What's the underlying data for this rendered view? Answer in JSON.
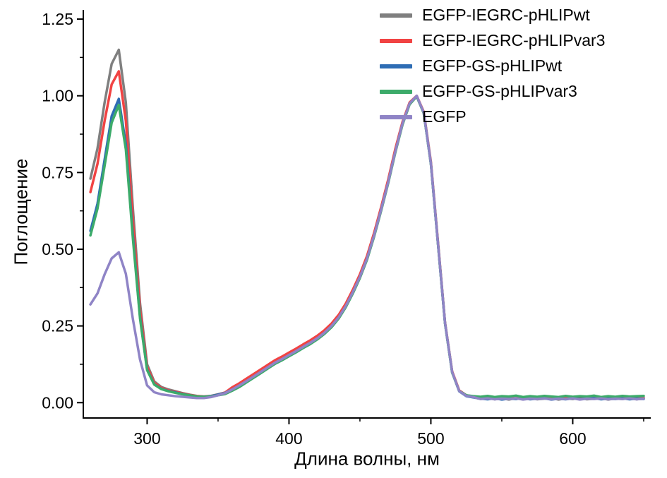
{
  "figure": {
    "background": "#ffffff",
    "axis_color": "#000000"
  },
  "chart_data": {
    "type": "line",
    "title": "",
    "xlabel": "Длина волны, нм",
    "ylabel": "Поглощение",
    "xlim": [
      255,
      655
    ],
    "ylim": [
      -0.05,
      1.28
    ],
    "x_ticks": [
      300,
      400,
      500,
      600
    ],
    "x_tick_labels": [
      "300",
      "400",
      "500",
      "600"
    ],
    "x_minor_ticks": [
      350,
      450,
      550,
      650
    ],
    "y_ticks": [
      0.0,
      0.25,
      0.5,
      0.75,
      1.0,
      1.25
    ],
    "y_tick_labels": [
      "0.00",
      "0.25",
      "0.50",
      "0.75",
      "1.00",
      "1.25"
    ],
    "y_minor_ticks": [
      0.125,
      0.375,
      0.625,
      0.875,
      1.125
    ],
    "grid": false,
    "legend_position": "top-right",
    "line_width": 3.5,
    "x": [
      260,
      265,
      270,
      275,
      280,
      285,
      290,
      295,
      300,
      305,
      310,
      315,
      320,
      325,
      330,
      335,
      340,
      345,
      350,
      355,
      360,
      365,
      370,
      375,
      380,
      385,
      390,
      395,
      400,
      405,
      410,
      415,
      420,
      425,
      430,
      435,
      440,
      445,
      450,
      455,
      460,
      465,
      470,
      475,
      480,
      485,
      490,
      495,
      500,
      505,
      510,
      515,
      520,
      525,
      530,
      535,
      540,
      545,
      550,
      555,
      560,
      565,
      570,
      575,
      580,
      585,
      590,
      595,
      600,
      605,
      610,
      615,
      620,
      625,
      630,
      635,
      640,
      645,
      650
    ],
    "series": [
      {
        "name": "EGFP-IEGRC-pHLIPwt",
        "color": "#7f7f7f",
        "values": [
          0.73,
          0.828,
          0.978,
          1.104,
          1.15,
          0.978,
          0.633,
          0.324,
          0.125,
          0.069,
          0.051,
          0.043,
          0.037,
          0.031,
          0.026,
          0.022,
          0.02,
          0.022,
          0.027,
          0.033,
          0.044,
          0.056,
          0.07,
          0.085,
          0.1,
          0.115,
          0.13,
          0.142,
          0.155,
          0.168,
          0.182,
          0.195,
          0.21,
          0.228,
          0.25,
          0.278,
          0.315,
          0.36,
          0.41,
          0.47,
          0.545,
          0.63,
          0.72,
          0.82,
          0.91,
          0.975,
          1.0,
          0.945,
          0.78,
          0.52,
          0.26,
          0.1,
          0.038,
          0.022,
          0.018,
          0.012,
          0.016,
          0.011,
          0.014,
          0.01,
          0.015,
          0.012,
          0.016,
          0.011,
          0.013,
          0.015,
          0.01,
          0.014,
          0.012,
          0.016,
          0.011,
          0.013,
          0.015,
          0.01,
          0.014,
          0.012,
          0.015,
          0.011,
          0.013
        ]
      },
      {
        "name": "EGFP-IEGRC-pHLIPvar3",
        "color": "#f14343",
        "values": [
          0.686,
          0.778,
          0.918,
          1.037,
          1.08,
          0.918,
          0.594,
          0.304,
          0.117,
          0.065,
          0.048,
          0.04,
          0.035,
          0.03,
          0.025,
          0.021,
          0.02,
          0.021,
          0.026,
          0.033,
          0.05,
          0.063,
          0.078,
          0.093,
          0.108,
          0.123,
          0.138,
          0.15,
          0.163,
          0.176,
          0.19,
          0.203,
          0.218,
          0.236,
          0.258,
          0.286,
          0.323,
          0.368,
          0.418,
          0.478,
          0.553,
          0.638,
          0.728,
          0.828,
          0.915,
          0.978,
          1.0,
          0.948,
          0.785,
          0.525,
          0.262,
          0.102,
          0.04,
          0.024,
          0.02,
          0.016,
          0.013,
          0.017,
          0.012,
          0.016,
          0.014,
          0.018,
          0.013,
          0.015,
          0.017,
          0.012,
          0.016,
          0.014,
          0.017,
          0.013,
          0.015,
          0.016,
          0.012,
          0.017,
          0.014,
          0.016,
          0.013,
          0.015,
          0.016
        ]
      },
      {
        "name": "EGFP-GS-pHLIPwt",
        "color": "#2e6db4",
        "values": [
          0.56,
          0.648,
          0.792,
          0.934,
          0.99,
          0.842,
          0.545,
          0.279,
          0.108,
          0.06,
          0.045,
          0.038,
          0.033,
          0.028,
          0.024,
          0.02,
          0.019,
          0.021,
          0.026,
          0.032,
          0.043,
          0.055,
          0.069,
          0.084,
          0.099,
          0.114,
          0.129,
          0.141,
          0.154,
          0.167,
          0.181,
          0.194,
          0.209,
          0.227,
          0.249,
          0.277,
          0.314,
          0.359,
          0.409,
          0.469,
          0.544,
          0.629,
          0.719,
          0.819,
          0.909,
          0.974,
          0.998,
          0.944,
          0.779,
          0.519,
          0.259,
          0.099,
          0.037,
          0.021,
          0.017,
          0.013,
          0.011,
          0.014,
          0.01,
          0.013,
          0.012,
          0.015,
          0.011,
          0.013,
          0.014,
          0.01,
          0.013,
          0.011,
          0.014,
          0.012,
          0.013,
          0.015,
          0.011,
          0.013,
          0.012,
          0.014,
          0.011,
          0.013,
          0.012
        ]
      },
      {
        "name": "EGFP-GS-pHLIPvar3",
        "color": "#3cab6a",
        "values": [
          0.545,
          0.632,
          0.772,
          0.912,
          0.97,
          0.825,
          0.534,
          0.274,
          0.106,
          0.059,
          0.044,
          0.037,
          0.032,
          0.027,
          0.024,
          0.02,
          0.019,
          0.02,
          0.024,
          0.028,
          0.039,
          0.051,
          0.066,
          0.081,
          0.096,
          0.111,
          0.126,
          0.138,
          0.151,
          0.164,
          0.178,
          0.191,
          0.206,
          0.224,
          0.246,
          0.274,
          0.311,
          0.356,
          0.406,
          0.466,
          0.541,
          0.626,
          0.716,
          0.816,
          0.906,
          0.972,
          0.998,
          0.943,
          0.778,
          0.518,
          0.258,
          0.098,
          0.038,
          0.024,
          0.021,
          0.019,
          0.022,
          0.018,
          0.021,
          0.02,
          0.023,
          0.018,
          0.021,
          0.019,
          0.022,
          0.02,
          0.018,
          0.022,
          0.019,
          0.021,
          0.02,
          0.023,
          0.018,
          0.021,
          0.019,
          0.022,
          0.02,
          0.021,
          0.022
        ]
      },
      {
        "name": "EGFP",
        "color": "#8f84c6",
        "values": [
          0.32,
          0.356,
          0.418,
          0.47,
          0.49,
          0.42,
          0.272,
          0.14,
          0.056,
          0.034,
          0.027,
          0.024,
          0.021,
          0.019,
          0.017,
          0.015,
          0.015,
          0.018,
          0.024,
          0.031,
          0.043,
          0.056,
          0.07,
          0.085,
          0.1,
          0.115,
          0.13,
          0.142,
          0.155,
          0.168,
          0.182,
          0.195,
          0.21,
          0.228,
          0.25,
          0.278,
          0.315,
          0.36,
          0.41,
          0.47,
          0.545,
          0.63,
          0.72,
          0.82,
          0.91,
          0.975,
          1.0,
          0.945,
          0.78,
          0.52,
          0.26,
          0.1,
          0.038,
          0.022,
          0.018,
          0.012,
          0.014,
          0.011,
          0.013,
          0.012,
          0.014,
          0.01,
          0.013,
          0.012,
          0.014,
          0.011,
          0.013,
          0.012,
          0.014,
          0.01,
          0.013,
          0.012,
          0.014,
          0.011,
          0.013,
          0.012,
          0.014,
          0.011,
          0.013
        ]
      }
    ]
  }
}
